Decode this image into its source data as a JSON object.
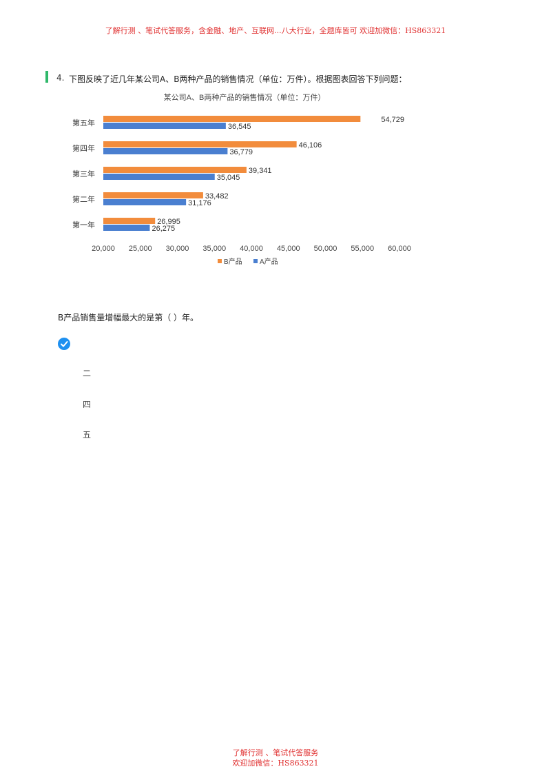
{
  "header_banner": "了解行测 、笔试代答服务，含金融、地产、互联网...八大行业，全题库皆可 欢迎加微信：HS863321",
  "question": {
    "number": "4.",
    "text": "下图反映了近几年某公司A、B两种产品的销售情况（单位：万件）。根据图表回答下列问题："
  },
  "chart_data": {
    "type": "bar",
    "orientation": "horizontal",
    "title": "某公司A、B两种产品的销售情况（单位：万件）",
    "categories": [
      "第五年",
      "第四年",
      "第三年",
      "第二年",
      "第一年"
    ],
    "series": [
      {
        "name": "B产品",
        "color": "#f28c3c",
        "values": [
          54729,
          46106,
          39341,
          33482,
          26995
        ],
        "labels": [
          "54,729",
          "46,106",
          "39,341",
          "33,482",
          "26,995"
        ]
      },
      {
        "name": "A产品",
        "color": "#4a7fd0",
        "values": [
          36545,
          36779,
          35045,
          31176,
          26275
        ],
        "labels": [
          "36,545",
          "36,779",
          "35,045",
          "31,176",
          "26,275"
        ]
      }
    ],
    "xlim": [
      20000,
      60000
    ],
    "xticks": [
      "20,000",
      "25,000",
      "30,000",
      "35,000",
      "40,000",
      "45,000",
      "50,000",
      "55,000",
      "60,000"
    ],
    "legend_position": "bottom",
    "grid": false
  },
  "sub_question": "B产品销售量增幅最大的是第（ ）年。",
  "check_icon": "check-circle-icon",
  "options": [
    "二",
    "四",
    "五"
  ],
  "footer_banner": {
    "line1": "了解行测 、笔试代答服务",
    "line2": "欢迎加微信：HS863321"
  },
  "colors": {
    "banner": "#e03030",
    "accent_bar": "#2fb86a",
    "check": "#1e90f0"
  }
}
